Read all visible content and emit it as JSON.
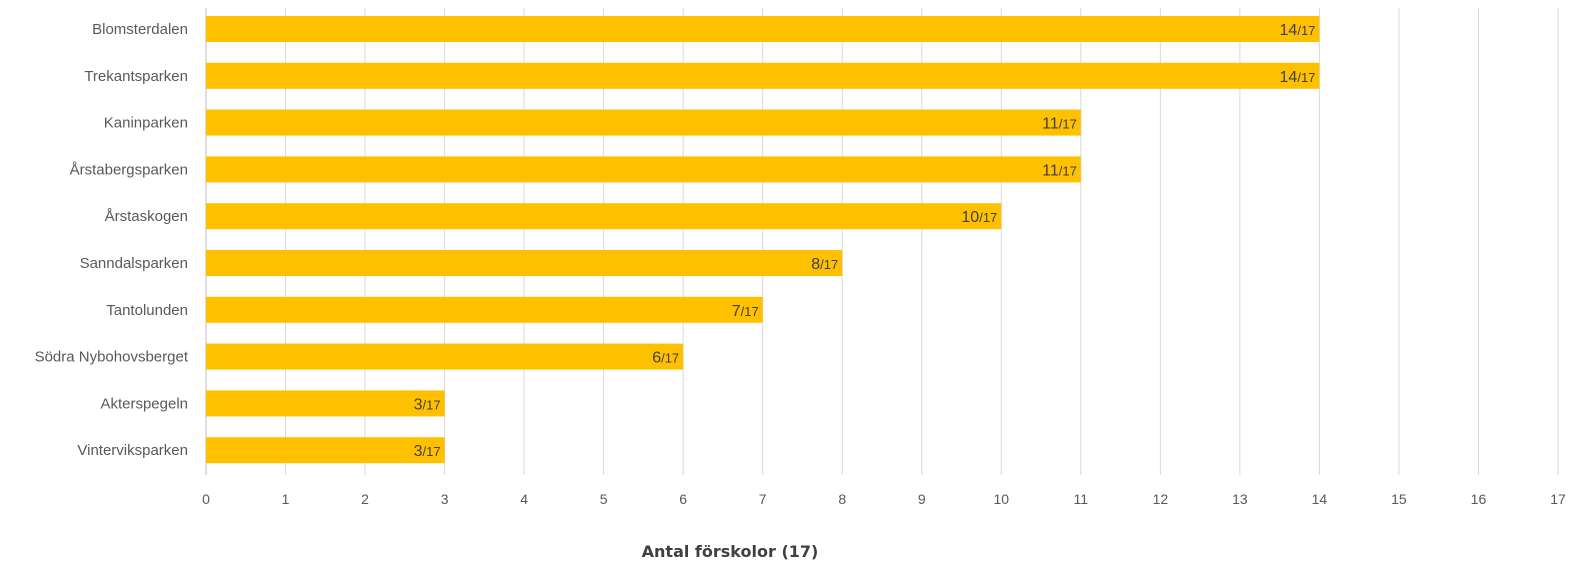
{
  "chart_data": {
    "type": "bar",
    "orientation": "horizontal",
    "categories": [
      "Blomsterdalen",
      "Trekantsparken",
      "Kaninparken",
      "Årstabergsparken",
      "Årstaskogen",
      "Sanndalsparken",
      "Tantolunden",
      "Södra Nybohovsberget",
      "Akterspegeln",
      "Vinterviksparken"
    ],
    "values": [
      14,
      14,
      11,
      11,
      10,
      8,
      7,
      6,
      3,
      3
    ],
    "data_labels": [
      "14/17",
      "14/17",
      "11/17",
      "11/17",
      "10/17",
      "8/17",
      "7/17",
      "6/17",
      "3/17",
      "3/17"
    ],
    "xlabel": "Antal förskolor (17)",
    "xlim": [
      0,
      17
    ],
    "xticks": [
      "0",
      "1",
      "2",
      "3",
      "4",
      "5",
      "6",
      "7",
      "8",
      "9",
      "10",
      "11",
      "12",
      "13",
      "14",
      "15",
      "16",
      "17"
    ],
    "grid": true,
    "bar_color": "#FFC000",
    "grid_color": "#D9D9D9"
  }
}
